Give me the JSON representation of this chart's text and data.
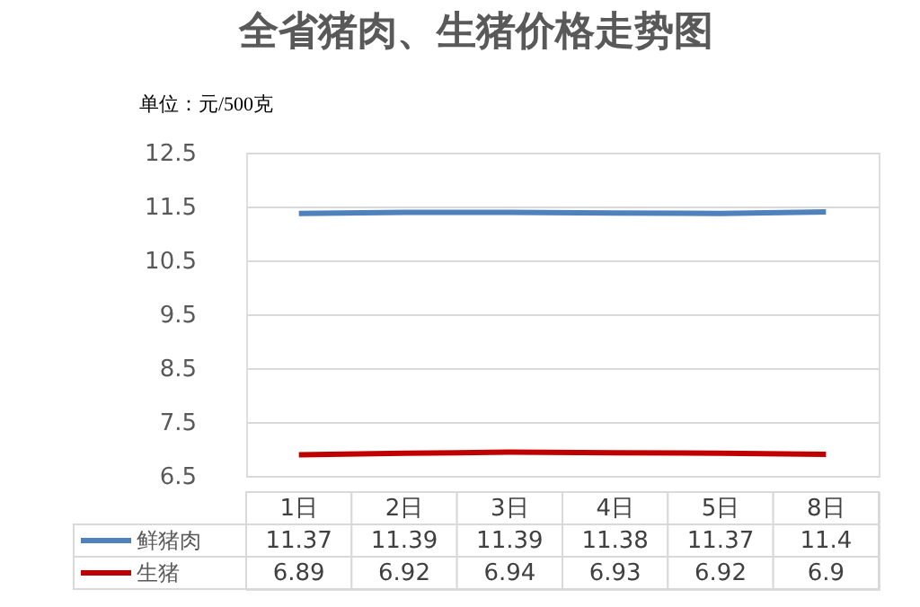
{
  "chart_data": {
    "type": "line",
    "title": "全省猪肉、生猪价格走势图",
    "ylabel": "单位：元/500克",
    "categories": [
      "1日",
      "2日",
      "3日",
      "4日",
      "5日",
      "8日"
    ],
    "series": [
      {
        "name": "鲜猪肉",
        "color": "#4f81bd",
        "values": [
          11.37,
          11.39,
          11.39,
          11.38,
          11.37,
          11.4
        ]
      },
      {
        "name": "生猪",
        "color": "#c00000",
        "values": [
          6.89,
          6.92,
          6.94,
          6.93,
          6.92,
          6.9
        ]
      }
    ],
    "ylim": [
      6.5,
      12.5
    ],
    "yticks": [
      6.5,
      7.5,
      8.5,
      9.5,
      10.5,
      11.5,
      12.5
    ],
    "grid": "y",
    "legend": "bottom",
    "data_labels": true,
    "line_style": "solid",
    "marker": "none"
  }
}
